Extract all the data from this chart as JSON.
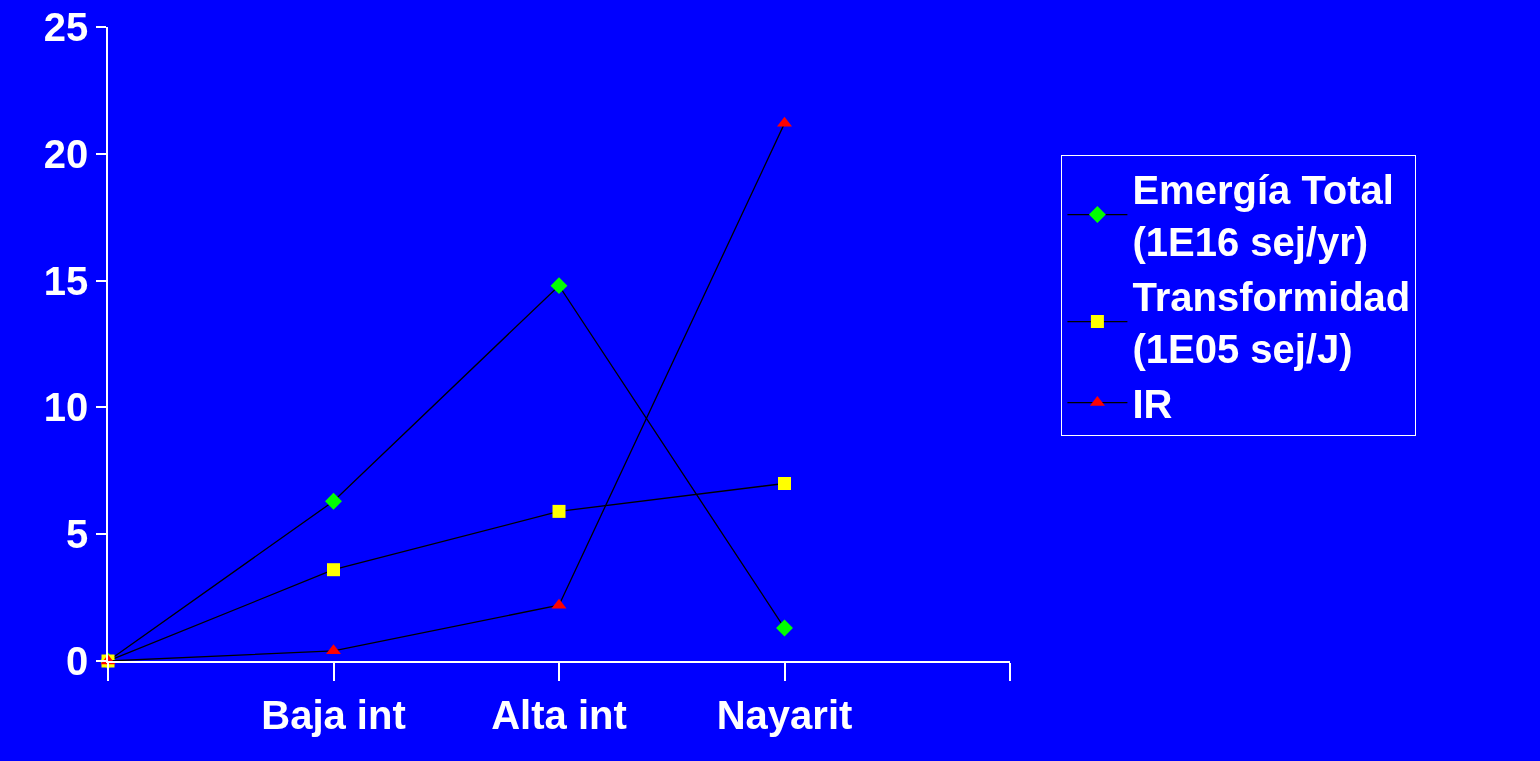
{
  "chart_data": {
    "type": "line",
    "categories": [
      null,
      "Baja int",
      "Alta int",
      "Nayarit",
      null
    ],
    "series": [
      {
        "name": "Emergía Total (1E16 sej/yr)",
        "color": "#00ff00",
        "marker": "diamond",
        "values": [
          0,
          6.3,
          14.8,
          1.3,
          null
        ]
      },
      {
        "name": "Transformidad (1E05 sej/J)",
        "color": "#ffff00",
        "marker": "square",
        "values": [
          0,
          3.6,
          5.9,
          7.0,
          null
        ]
      },
      {
        "name": "IR",
        "color": "#ff0000",
        "marker": "triangle",
        "values": [
          0,
          0.4,
          2.2,
          21.2,
          null
        ]
      }
    ],
    "ylim": [
      0,
      25
    ],
    "yticks": [
      0,
      5,
      10,
      15,
      20,
      25
    ],
    "grid": false,
    "legend": "right",
    "line_style": "solid"
  }
}
